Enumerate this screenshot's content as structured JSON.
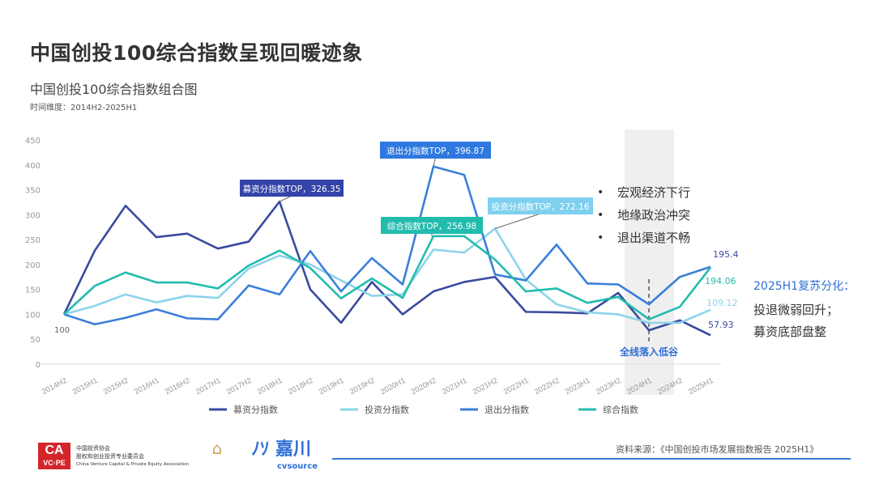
{
  "title": "中国创投100综合指数呈现回暖迹象",
  "subtitle": "中国创投100综合指数组合图",
  "time_range": "时间维度：2014H2-2025H1",
  "chart_data": {
    "type": "line",
    "categories": [
      "2014H2",
      "2015H1",
      "2015H2",
      "2016H1",
      "2016H2",
      "2017H1",
      "2017H2",
      "2018H1",
      "2018H2",
      "2019H1",
      "2019H2",
      "2020H1",
      "2020H2",
      "2021H1",
      "2021H2",
      "2022H1",
      "2022H2",
      "2023H1",
      "2023H2",
      "2024H1",
      "2024H2",
      "2025H1"
    ],
    "ylim": [
      0,
      450
    ],
    "yticks": [
      0,
      50,
      100,
      150,
      200,
      250,
      300,
      350,
      400,
      450
    ],
    "series": [
      {
        "name": "募资分指数",
        "color": "#3a4aa0",
        "values": [
          100,
          228,
          318,
          255,
          262,
          232,
          246,
          326.35,
          150,
          83,
          165,
          100,
          146,
          165,
          175,
          105,
          104,
          102,
          143,
          68,
          88,
          57.93
        ]
      },
      {
        "name": "投资分指数",
        "color": "#8dd3ea",
        "values": [
          100,
          117,
          140,
          124,
          137,
          133,
          192,
          218,
          200,
          168,
          137,
          140,
          230,
          224,
          272.16,
          170,
          120,
          104,
          100,
          83,
          83,
          109.12
        ]
      },
      {
        "name": "退出分指数",
        "color": "#3b7fd9",
        "values": [
          100,
          80,
          93,
          110,
          92,
          90,
          158,
          140,
          227,
          146,
          213,
          160,
          396.87,
          380,
          180,
          168,
          240,
          162,
          160,
          120,
          175,
          195.4
        ]
      },
      {
        "name": "综合指数",
        "color": "#22bcae",
        "values": [
          100,
          157,
          184,
          164,
          164,
          152,
          198,
          228,
          193,
          132,
          172,
          133,
          256.98,
          256.98,
          210,
          146,
          152,
          123,
          135,
          90,
          115,
          194.06
        ]
      }
    ],
    "annotations": {
      "start": "100",
      "fund_top": "募资分指数TOP，326.35",
      "exit_top": "退出分指数TOP，396.87",
      "invest_top": "投资分指数TOP，272.16",
      "comp_top": "综合指数TOP，256.98",
      "end_exit": "195.4",
      "end_comp": "194.06",
      "end_invest": "109.12",
      "end_fund": "57.93",
      "trough": "全线落入低谷"
    },
    "highlight_band": [
      "2023H2",
      "2024H2"
    ],
    "legend_position": "bottom"
  },
  "bullets": [
    "宏观经济下行",
    "地缘政治冲突",
    "退出渠道不畅"
  ],
  "right_note": {
    "title": "2025H1复苏分化：",
    "line1": "投退微弱回升；",
    "line2": "募资底部盘整"
  },
  "source": "资料来源：《中国创投市场发展指数报告 2025H1》",
  "logos": {
    "ca": "CA",
    "vcpe": "VC·PE",
    "assoc_cn1": "中国投资协会",
    "assoc_cn2": "股权和创业投资专业委员会",
    "assoc_en": "China Venture Capital & Private Equity Association",
    "cv_cn": "嘉川",
    "cv_en": "cvsource"
  }
}
